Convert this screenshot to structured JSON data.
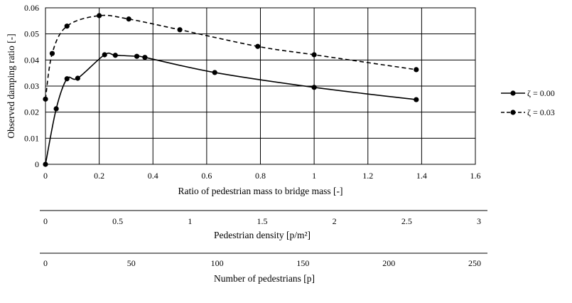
{
  "chart_data": {
    "type": "line",
    "ylabel": "Observed damping ratio [-]",
    "xlabel": "Ratio of pedestrian mass to bridge mass [-]",
    "xlim": [
      0,
      1.6
    ],
    "ylim": [
      0,
      0.06
    ],
    "x_ticks": [
      "0",
      "0.2",
      "0.4",
      "0.6",
      "0.8",
      "1",
      "1.2",
      "1.4",
      "1.6"
    ],
    "y_ticks": [
      "0",
      "0.01",
      "0.02",
      "0.03",
      "0.04",
      "0.05",
      "0.06"
    ],
    "grid": true,
    "legend_position": "right",
    "series": [
      {
        "name": "ζ = 0.00",
        "line_style": "solid",
        "color": "#000000",
        "points": [
          [
            0.0,
            0.0
          ],
          [
            0.04,
            0.0213
          ],
          [
            0.08,
            0.0328
          ],
          [
            0.12,
            0.033
          ],
          [
            0.22,
            0.042
          ],
          [
            0.26,
            0.0418
          ],
          [
            0.34,
            0.0414
          ],
          [
            0.37,
            0.041
          ],
          [
            0.63,
            0.0352
          ],
          [
            1.0,
            0.0295
          ],
          [
            1.38,
            0.0248
          ]
        ]
      },
      {
        "name": "ζ = 0.03",
        "line_style": "dashed",
        "color": "#000000",
        "points": [
          [
            0.0,
            0.025
          ],
          [
            0.025,
            0.0425
          ],
          [
            0.08,
            0.053
          ],
          [
            0.2,
            0.057
          ],
          [
            0.31,
            0.0557
          ],
          [
            0.5,
            0.0516
          ],
          [
            0.79,
            0.0452
          ],
          [
            1.0,
            0.042
          ],
          [
            1.38,
            0.0363
          ]
        ]
      }
    ],
    "secondary_axes": [
      {
        "xlabel": "Pedestrian density [p/m²]",
        "range": [
          0,
          3
        ],
        "ticks": [
          "0",
          "0.5",
          "1",
          "1.5",
          "2",
          "2.5",
          "3"
        ]
      },
      {
        "xlabel": "Number of pedestrians [p]",
        "range": [
          0,
          250
        ],
        "ticks": [
          "0",
          "50",
          "100",
          "150",
          "200",
          "250"
        ]
      }
    ]
  }
}
